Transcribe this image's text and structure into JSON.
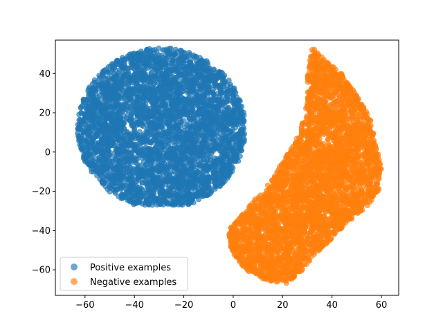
{
  "chart_data": {
    "type": "scatter",
    "title": "",
    "xlabel": "",
    "ylabel": "",
    "xlim": [
      -72,
      67
    ],
    "ylim": [
      -73,
      57
    ],
    "xticks": [
      -60,
      -40,
      -20,
      0,
      20,
      40,
      60
    ],
    "yticks": [
      -60,
      -40,
      -20,
      0,
      20,
      40
    ],
    "grid": false,
    "legend_position": "lower-left",
    "series": [
      {
        "name": "Positive examples",
        "color": "#1f77b4",
        "alpha": 0.65,
        "cluster": {
          "shape": "ellipse",
          "center": [
            -29,
            12
          ],
          "radii": [
            34,
            41
          ],
          "point_count": 4000,
          "x_range": [
            -68,
            7
          ],
          "y_range": [
            -27,
            53
          ]
        }
      },
      {
        "name": "Negative examples",
        "color": "#ff7f0e",
        "alpha": 0.65,
        "cluster": {
          "shape": "polygon",
          "outline": [
            [
              32,
              54
            ],
            [
              37,
              47
            ],
            [
              44,
              40
            ],
            [
              51,
              27
            ],
            [
              56,
              16
            ],
            [
              57,
              8
            ],
            [
              60,
              -8
            ],
            [
              59,
              -20
            ],
            [
              54,
              -28
            ],
            [
              46,
              -36
            ],
            [
              40,
              -44
            ],
            [
              33,
              -52
            ],
            [
              28,
              -60
            ],
            [
              22,
              -67
            ],
            [
              12,
              -65
            ],
            [
              5,
              -60
            ],
            [
              -1,
              -50
            ],
            [
              -2,
              -40
            ],
            [
              5,
              -30
            ],
            [
              15,
              -15
            ],
            [
              20,
              -5
            ],
            [
              27,
              10
            ],
            [
              30,
              25
            ],
            [
              30,
              40
            ]
          ],
          "point_count": 4000,
          "x_range": [
            -2,
            60
          ],
          "y_range": [
            -67,
            54
          ]
        }
      }
    ]
  },
  "legend": {
    "items": [
      {
        "label": "Positive examples",
        "color": "#1f77b4"
      },
      {
        "label": "Negative examples",
        "color": "#ff7f0e"
      }
    ]
  }
}
